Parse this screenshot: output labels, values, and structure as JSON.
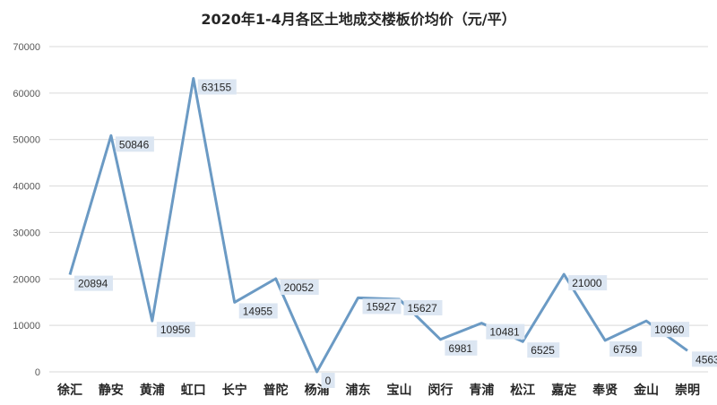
{
  "chart_data": {
    "type": "line",
    "title": "2020年1-4月各区土地成交楼板价均价（元/平）",
    "categories": [
      "徐汇",
      "静安",
      "黄浦",
      "虹口",
      "长宁",
      "普陀",
      "杨浦",
      "浦东",
      "宝山",
      "闵行",
      "青浦",
      "松江",
      "嘉定",
      "奉贤",
      "金山",
      "崇明"
    ],
    "series": [
      {
        "values": [
          20894,
          50846,
          10956,
          63155,
          14955,
          20052,
          0,
          15927,
          15627,
          6981,
          10481,
          6525,
          21000,
          6759,
          10960,
          4563
        ]
      }
    ],
    "ylim": [
      0,
      70000
    ],
    "yticks": [
      0,
      10000,
      20000,
      30000,
      40000,
      50000,
      60000,
      70000
    ],
    "grid": true,
    "line_color": "#6b9ac4",
    "label_bg": "#dce6f2"
  }
}
